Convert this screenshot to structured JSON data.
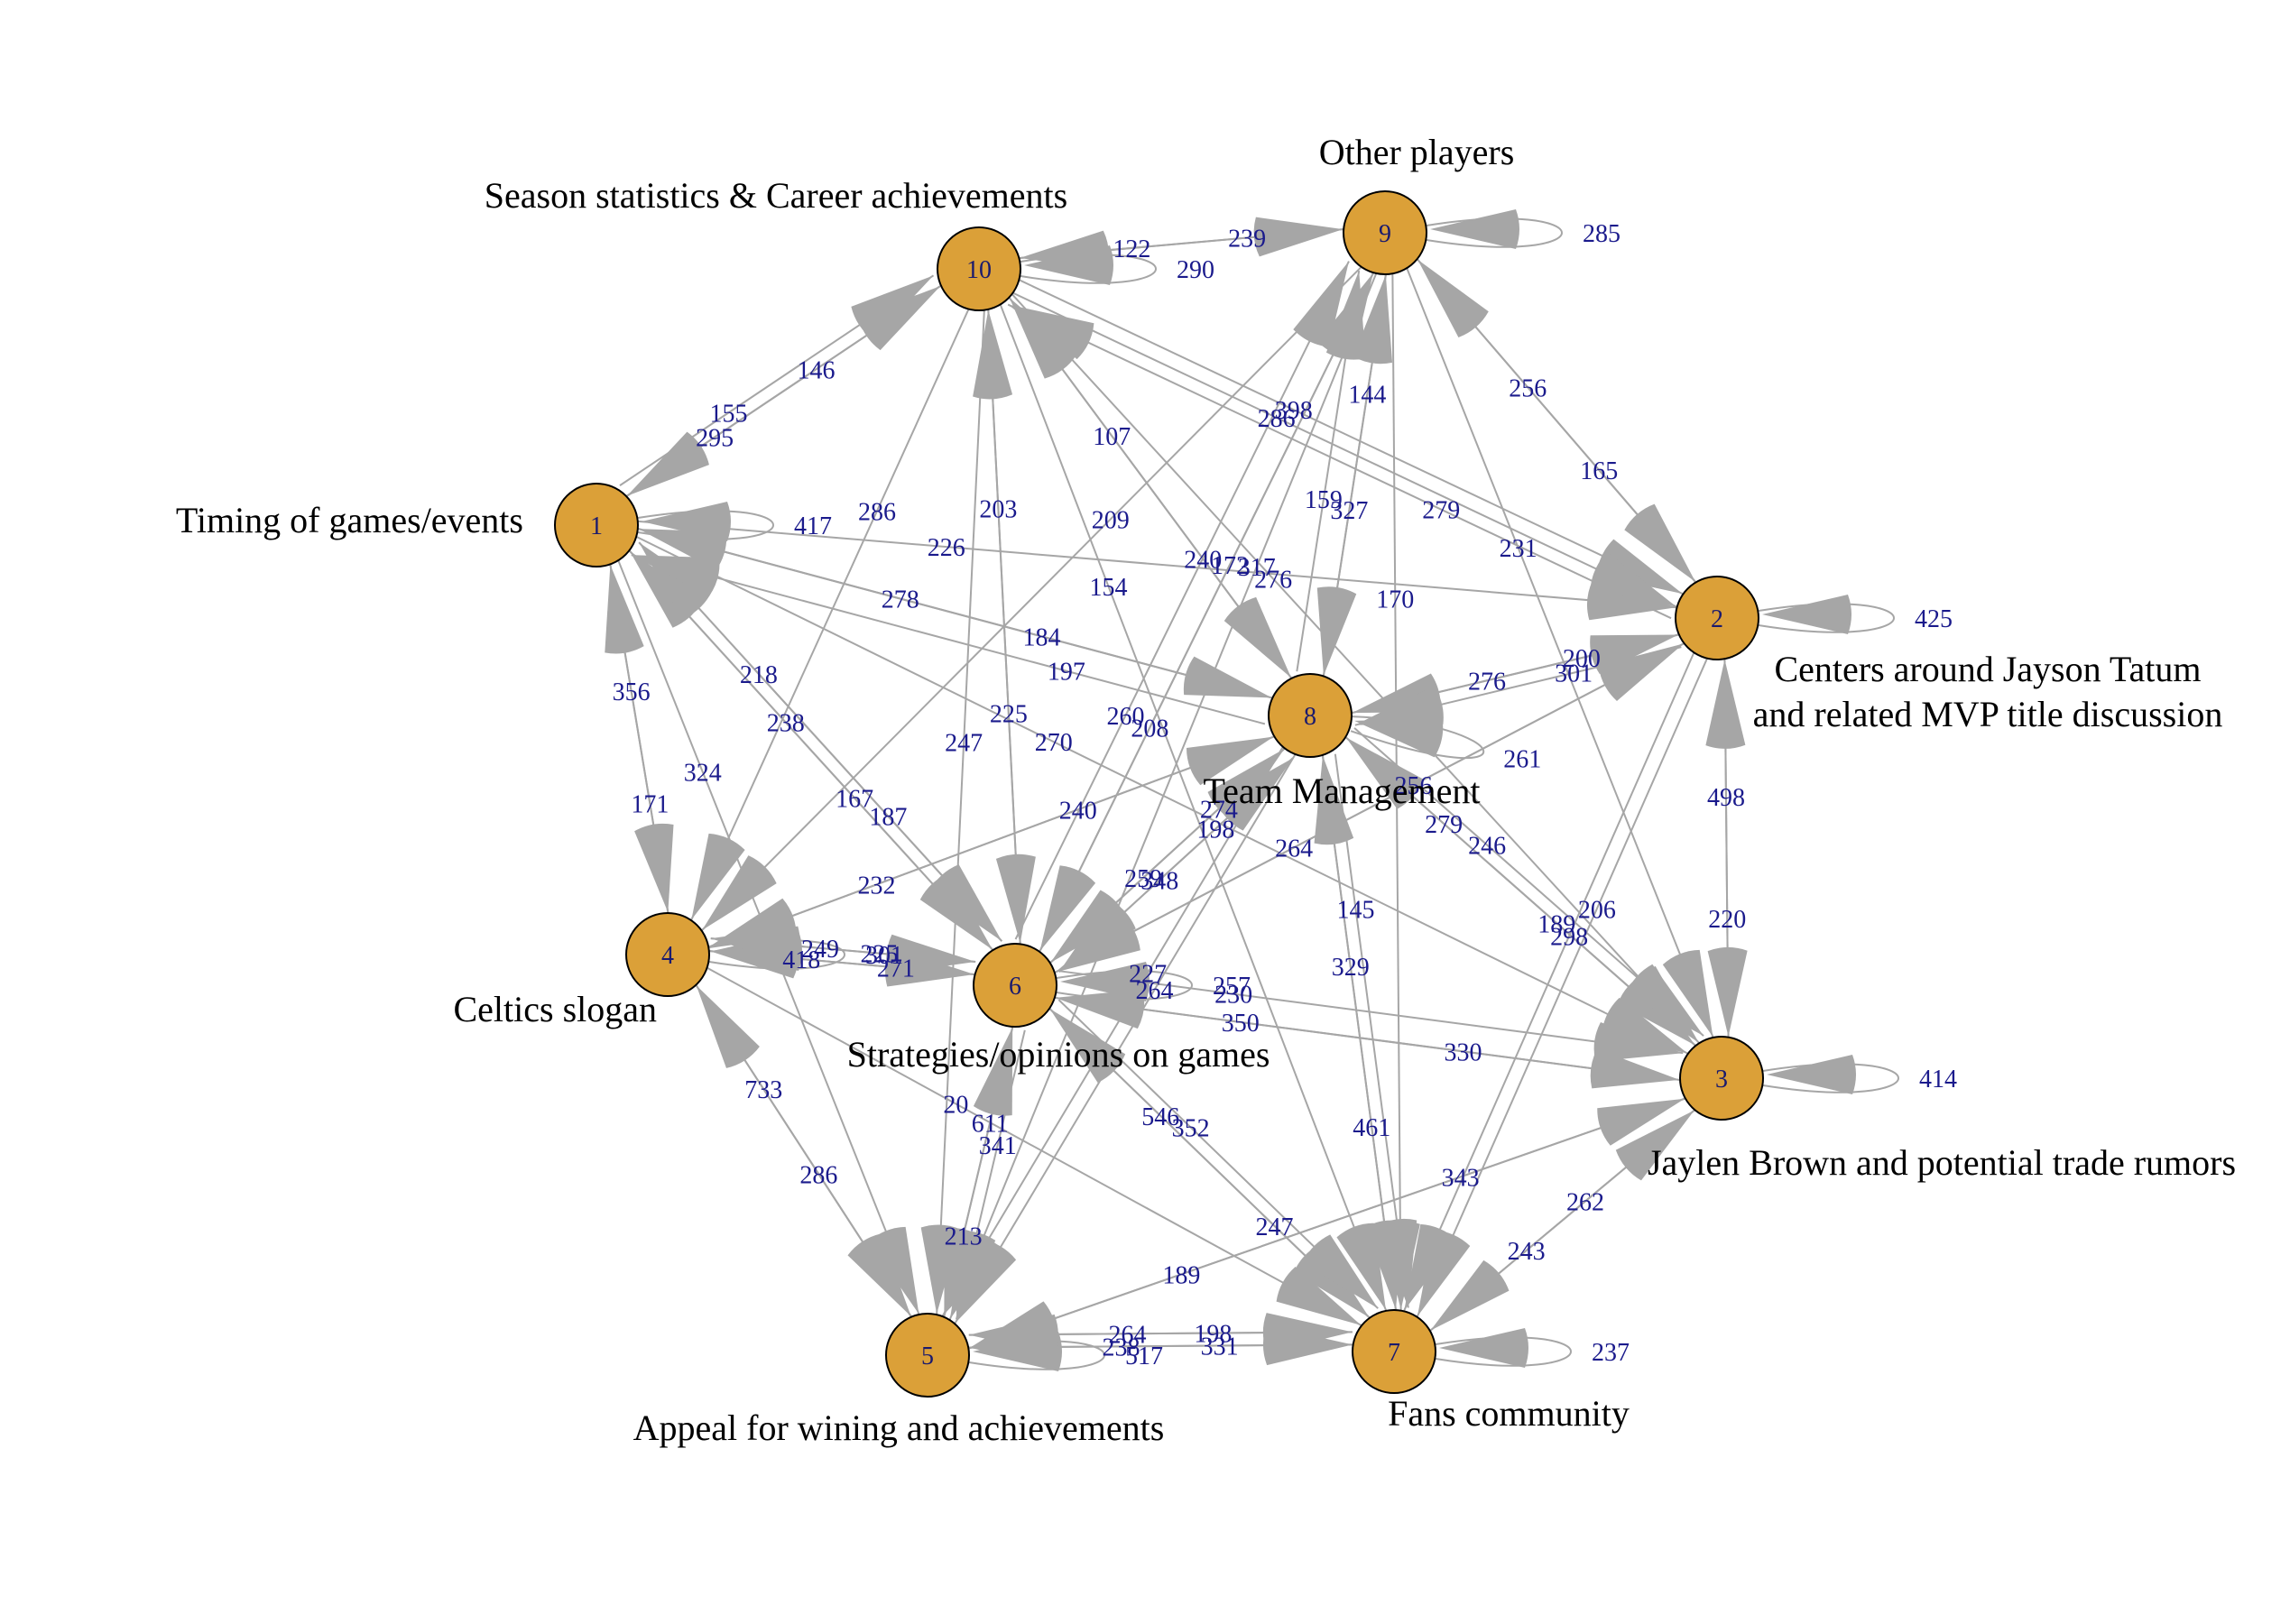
{
  "style": {
    "node_fill": "#dba038",
    "edge_color": "#a6a6a6",
    "label_color": "#1a1a8c"
  },
  "nodes": [
    {
      "id": "1",
      "label": [
        "Timing of games/events"
      ]
    },
    {
      "id": "2",
      "label": [
        "Centers around Jayson Tatum",
        "and related MVP title discussion"
      ]
    },
    {
      "id": "3",
      "label": [
        "Jaylen Brown and potential trade rumors"
      ]
    },
    {
      "id": "4",
      "label": [
        "Celtics slogan"
      ]
    },
    {
      "id": "5",
      "label": [
        "Appeal for wining and achievements"
      ]
    },
    {
      "id": "6",
      "label": [
        "Strategies/opinions on games"
      ]
    },
    {
      "id": "7",
      "label": [
        "Fans community"
      ]
    },
    {
      "id": "8",
      "label": [
        "Team Management"
      ]
    },
    {
      "id": "9",
      "label": [
        "Other players"
      ]
    },
    {
      "id": "10",
      "label": [
        "Season statistics & Career achievements"
      ]
    }
  ],
  "edges": [
    {
      "from": "1",
      "to": "1",
      "weight": "417"
    },
    {
      "from": "2",
      "to": "2",
      "weight": "425"
    },
    {
      "from": "3",
      "to": "3",
      "weight": "414"
    },
    {
      "from": "4",
      "to": "4",
      "weight": "301"
    },
    {
      "from": "5",
      "to": "5",
      "weight": "517"
    },
    {
      "from": "6",
      "to": "6",
      "weight": "257"
    },
    {
      "from": "7",
      "to": "7",
      "weight": "237"
    },
    {
      "from": "8",
      "to": "8",
      "weight": "261"
    },
    {
      "from": "9",
      "to": "9",
      "weight": "285"
    },
    {
      "from": "10",
      "to": "10",
      "weight": "290"
    },
    {
      "from": "1",
      "to": "10",
      "weight": "295"
    },
    {
      "from": "10",
      "to": "1",
      "weight": "146"
    },
    {
      "from": "1",
      "to": "10",
      "weight": "155"
    },
    {
      "from": "1",
      "to": "2",
      "weight": "226"
    },
    {
      "from": "1",
      "to": "8",
      "weight": "278"
    },
    {
      "from": "1",
      "to": "4",
      "weight": "356"
    },
    {
      "from": "4",
      "to": "1",
      "weight": "171"
    },
    {
      "from": "1",
      "to": "6",
      "weight": "238"
    },
    {
      "from": "6",
      "to": "1",
      "weight": "167"
    },
    {
      "from": "1",
      "to": "6",
      "weight": "218"
    },
    {
      "from": "1",
      "to": "5",
      "weight": "324"
    },
    {
      "from": "1",
      "to": "3",
      "weight": "270"
    },
    {
      "from": "10",
      "to": "9",
      "weight": "122"
    },
    {
      "from": "9",
      "to": "10",
      "weight": "239"
    },
    {
      "from": "10",
      "to": "2",
      "weight": "398"
    },
    {
      "from": "10",
      "to": "8",
      "weight": "107"
    },
    {
      "from": "10",
      "to": "6",
      "weight": "203"
    },
    {
      "from": "10",
      "to": "5",
      "weight": "247"
    },
    {
      "from": "10",
      "to": "3",
      "weight": "276"
    },
    {
      "from": "10",
      "to": "4",
      "weight": "286"
    },
    {
      "from": "10",
      "to": "7",
      "weight": "154"
    },
    {
      "from": "9",
      "to": "2",
      "weight": "256"
    },
    {
      "from": "2",
      "to": "9",
      "weight": "165"
    },
    {
      "from": "9",
      "to": "8",
      "weight": "144"
    },
    {
      "from": "8",
      "to": "9",
      "weight": "327"
    },
    {
      "from": "9",
      "to": "3",
      "weight": "231"
    },
    {
      "from": "9",
      "to": "7",
      "weight": "170"
    },
    {
      "from": "9",
      "to": "6",
      "weight": "172"
    },
    {
      "from": "9",
      "to": "4",
      "weight": "209"
    },
    {
      "from": "6",
      "to": "9",
      "weight": "208"
    },
    {
      "from": "9",
      "to": "5",
      "weight": "317"
    },
    {
      "from": "10",
      "to": "2",
      "weight": "286"
    },
    {
      "from": "2",
      "to": "10",
      "weight": "279"
    },
    {
      "from": "2",
      "to": "8",
      "weight": "200"
    },
    {
      "from": "8",
      "to": "2",
      "weight": "276"
    },
    {
      "from": "2",
      "to": "3",
      "weight": "498"
    },
    {
      "from": "3",
      "to": "2",
      "weight": "220"
    },
    {
      "from": "2",
      "to": "6",
      "weight": "256"
    },
    {
      "from": "2",
      "to": "7",
      "weight": "206"
    },
    {
      "from": "2",
      "to": "8",
      "weight": "301"
    },
    {
      "from": "8",
      "to": "3",
      "weight": "279"
    },
    {
      "from": "3",
      "to": "8",
      "weight": "189"
    },
    {
      "from": "3",
      "to": "6",
      "weight": "330"
    },
    {
      "from": "6",
      "to": "3",
      "weight": "350"
    },
    {
      "from": "3",
      "to": "7",
      "weight": "262"
    },
    {
      "from": "7",
      "to": "3",
      "weight": "243"
    },
    {
      "from": "3",
      "to": "5",
      "weight": "343"
    },
    {
      "from": "2",
      "to": "7",
      "weight": "298"
    },
    {
      "from": "8",
      "to": "7",
      "weight": "329"
    },
    {
      "from": "7",
      "to": "8",
      "weight": "461"
    },
    {
      "from": "8",
      "to": "6",
      "weight": "274"
    },
    {
      "from": "6",
      "to": "8",
      "weight": "259"
    },
    {
      "from": "8",
      "to": "4",
      "weight": "240"
    },
    {
      "from": "4",
      "to": "8",
      "weight": "232"
    },
    {
      "from": "8",
      "to": "5",
      "weight": "264"
    },
    {
      "from": "8",
      "to": "1",
      "weight": "184"
    },
    {
      "from": "8",
      "to": "10",
      "weight": "240"
    },
    {
      "from": "8",
      "to": "9",
      "weight": "159"
    },
    {
      "from": "8",
      "to": "3",
      "weight": "246"
    },
    {
      "from": "8",
      "to": "6",
      "weight": "198"
    },
    {
      "from": "8",
      "to": "7",
      "weight": "145"
    },
    {
      "from": "8",
      "to": "5",
      "weight": "227"
    },
    {
      "from": "4",
      "to": "6",
      "weight": "418"
    },
    {
      "from": "6",
      "to": "4",
      "weight": "271"
    },
    {
      "from": "4",
      "to": "6",
      "weight": "249"
    },
    {
      "from": "6",
      "to": "4",
      "weight": "225"
    },
    {
      "from": "4",
      "to": "5",
      "weight": "733"
    },
    {
      "from": "5",
      "to": "4",
      "weight": "286"
    },
    {
      "from": "4",
      "to": "7",
      "weight": "20"
    },
    {
      "from": "6",
      "to": "5",
      "weight": "611"
    },
    {
      "from": "5",
      "to": "6",
      "weight": "213"
    },
    {
      "from": "6",
      "to": "5",
      "weight": "341"
    },
    {
      "from": "6",
      "to": "7",
      "weight": "546"
    },
    {
      "from": "7",
      "to": "6",
      "weight": "247"
    },
    {
      "from": "6",
      "to": "7",
      "weight": "352"
    },
    {
      "from": "6",
      "to": "10",
      "weight": "225"
    },
    {
      "from": "6",
      "to": "1",
      "weight": "187"
    },
    {
      "from": "6",
      "to": "8",
      "weight": "348"
    },
    {
      "from": "6",
      "to": "2",
      "weight": "264"
    },
    {
      "from": "6",
      "to": "9",
      "weight": "260"
    },
    {
      "from": "6",
      "to": "3",
      "weight": "230"
    },
    {
      "from": "5",
      "to": "7",
      "weight": "238"
    },
    {
      "from": "7",
      "to": "5",
      "weight": "331"
    },
    {
      "from": "5",
      "to": "3",
      "weight": "189"
    },
    {
      "from": "5",
      "to": "7",
      "weight": "264"
    },
    {
      "from": "7",
      "to": "5",
      "weight": "198"
    },
    {
      "from": "8",
      "to": "1",
      "weight": "197"
    }
  ]
}
